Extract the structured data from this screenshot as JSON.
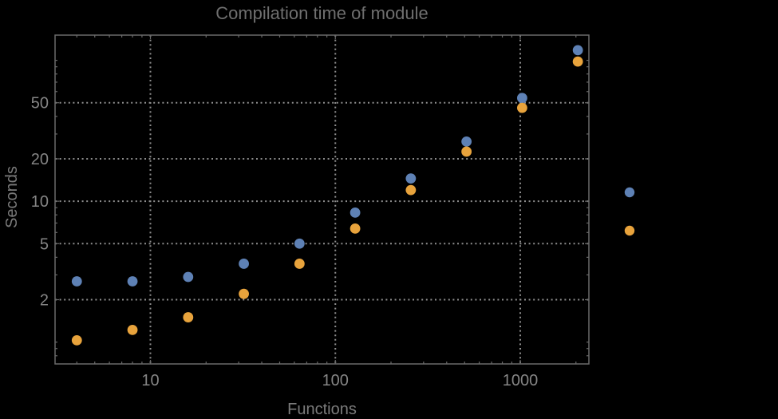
{
  "header": {
    "title": "Compilation time of module"
  },
  "chart_data": {
    "type": "scatter",
    "title": "Compilation time of module",
    "xlabel": "Functions",
    "ylabel": "Seconds",
    "x_scale": "log",
    "y_scale": "log",
    "xlim": [
      3.05,
      2350
    ],
    "ylim": [
      0.7,
      151
    ],
    "grid": "dotted lines at labeled major ticks only",
    "x": [
      4,
      8,
      16,
      32,
      64,
      128,
      256,
      512,
      1024,
      2048
    ],
    "series": [
      {
        "name": "series-blue",
        "color": "#5E81B5",
        "values": [
          2.7,
          2.7,
          2.9,
          3.6,
          5.0,
          8.3,
          14.5,
          26.5,
          54,
          118
        ]
      },
      {
        "name": "series-orange",
        "color": "#E8A33C",
        "values": [
          1.03,
          1.22,
          1.5,
          2.2,
          3.6,
          6.4,
          12,
          22.5,
          46,
          98
        ]
      }
    ],
    "x_ticks": {
      "values": [
        10,
        100,
        1000
      ],
      "labels": [
        "10",
        "100",
        "1000"
      ],
      "minor": [
        4,
        5,
        6,
        7,
        8,
        9,
        20,
        30,
        40,
        50,
        60,
        70,
        80,
        90,
        200,
        300,
        400,
        500,
        600,
        700,
        800,
        900,
        2000
      ]
    },
    "y_ticks": {
      "values": [
        2,
        5,
        10,
        20,
        50
      ],
      "labels": [
        "2",
        "5",
        "10",
        "20",
        "50"
      ],
      "minor": [
        0.8,
        0.9,
        1,
        3,
        4,
        6,
        7,
        8,
        9,
        30,
        40,
        60,
        70,
        80,
        90,
        100
      ]
    },
    "legend": {
      "position": "outside-right",
      "items": [
        {
          "color": "#5E81B5"
        },
        {
          "color": "#E8A33C"
        }
      ]
    }
  },
  "colors": {
    "background": "#000000",
    "frame": "#6a6a6a",
    "grid": "#8e8e8e",
    "tick_label": "#858585",
    "title": "#6f6f6f",
    "axis_label": "#7b7b7b",
    "point_blue": "#5E81B5",
    "point_orange": "#E8A33C"
  }
}
